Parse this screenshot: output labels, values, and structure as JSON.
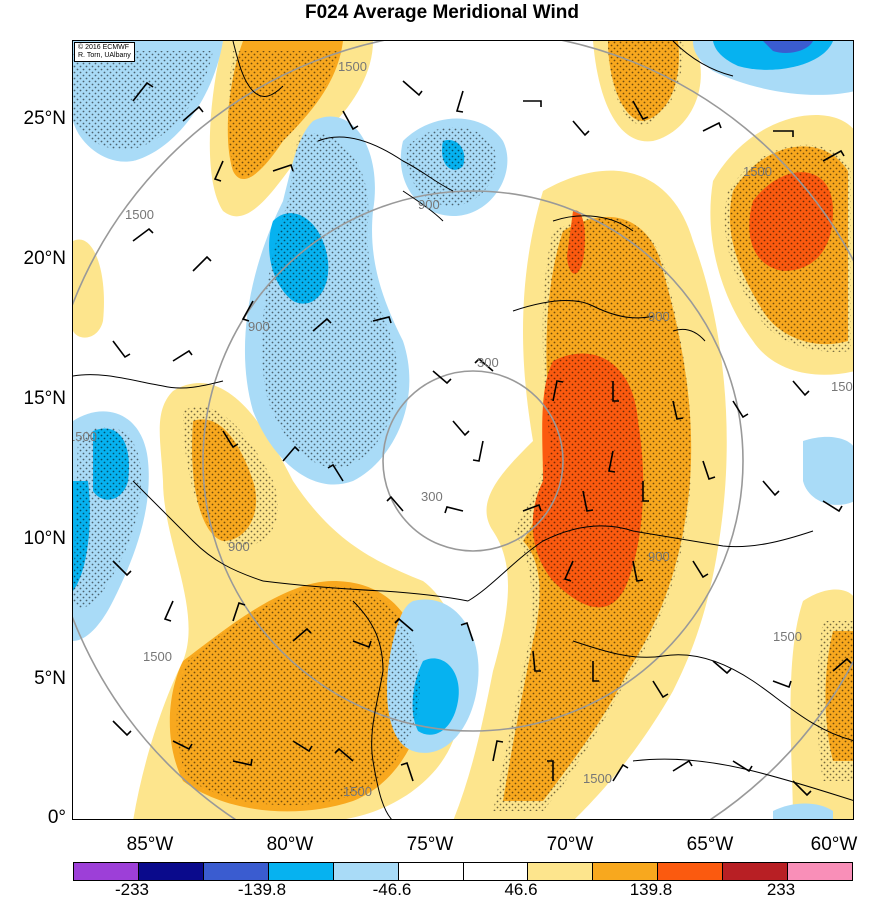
{
  "title": "F024 Average Meridional Wind",
  "credit": [
    "© 2016 ECMWF",
    "R. Torn, UAlbany"
  ],
  "lat_labels": [
    "25°N",
    "20°N",
    "15°N",
    "10°N",
    "5°N",
    "0°"
  ],
  "lon_labels": [
    "85°W",
    "80°W",
    "75°W",
    "70°W",
    "65°W",
    "60°W"
  ],
  "contour_labels": [
    "300",
    "900",
    "1500"
  ],
  "colorbar": {
    "colors": [
      "#9d3fd8",
      "#0a0a8c",
      "#3a5cd0",
      "#06b2f0",
      "#a9dbf7",
      "#ffffff",
      "#ffffff",
      "#fde58d",
      "#f8a81e",
      "#fb5a0f",
      "#b81f24",
      "#f98fb8"
    ],
    "labels": [
      "-233",
      "-139.8",
      "-46.6",
      "46.6",
      "139.8",
      "233"
    ]
  },
  "map_extent": {
    "lon": [
      -88,
      -60
    ],
    "lat": [
      0,
      28
    ]
  },
  "stipple_region": "shaded areas"
}
